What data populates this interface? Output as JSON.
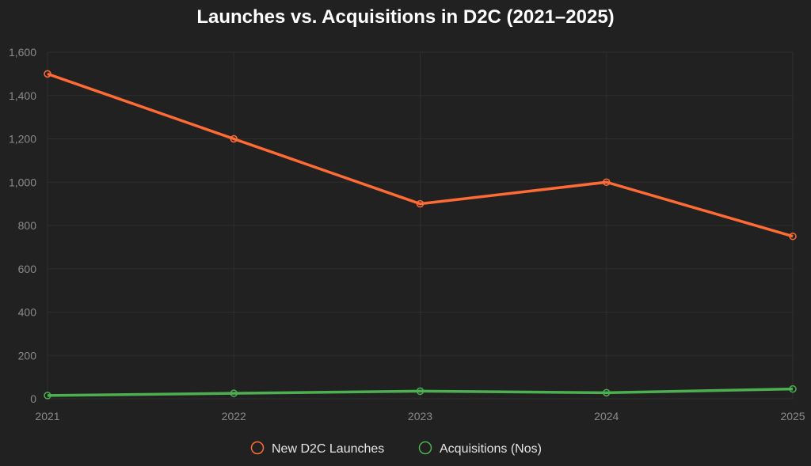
{
  "chart_data": {
    "type": "line",
    "title": "Launches vs. Acquisitions in D2C (2021–2025)",
    "categories": [
      "2021",
      "2022",
      "2023",
      "2024",
      "2025"
    ],
    "series": [
      {
        "name": "New D2C Launches",
        "values": [
          1500,
          1200,
          900,
          1000,
          750
        ],
        "color": "#ff6b35"
      },
      {
        "name": "Acquisitions (Nos)",
        "values": [
          15,
          25,
          35,
          28,
          45
        ],
        "color": "#4caf50"
      }
    ],
    "yticks": [
      "0",
      "200",
      "400",
      "600",
      "800",
      "1,000",
      "1,200",
      "1,400",
      "1,600"
    ],
    "ylim": [
      0,
      1600
    ],
    "grid": true,
    "legend": "bottom"
  }
}
